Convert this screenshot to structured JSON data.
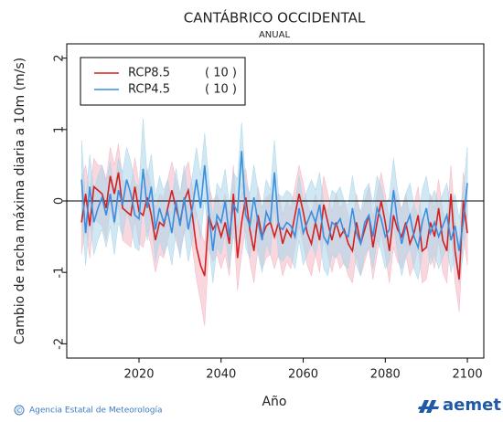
{
  "chart_data": {
    "type": "line",
    "title": "CANTÁBRICO OCCIDENTAL",
    "subtitle": "ANUAL",
    "y_label": "Cambio de racha máxima diaria a 10m (m/s)",
    "x_label": "Año",
    "footer_symbol": "©",
    "footer": "Agencia Estatal de Meteorología",
    "logo": "aemet",
    "xlim": [
      2002.4,
      2104
    ],
    "xticks": [
      2020,
      2040,
      2060,
      2080,
      2100
    ],
    "ylim": [
      -2.2,
      2.2
    ],
    "yticks": [
      2,
      1,
      0,
      -1,
      -2
    ],
    "hline": 0,
    "legend": "upper left",
    "x": [
      2006,
      2007,
      2008,
      2009,
      2010,
      2011,
      2012,
      2013,
      2014,
      2015,
      2016,
      2017,
      2018,
      2019,
      2020,
      2021,
      2022,
      2023,
      2024,
      2025,
      2026,
      2027,
      2028,
      2029,
      2030,
      2031,
      2032,
      2033,
      2034,
      2035,
      2036,
      2037,
      2038,
      2039,
      2040,
      2041,
      2042,
      2043,
      2044,
      2045,
      2046,
      2047,
      2048,
      2049,
      2050,
      2051,
      2052,
      2053,
      2054,
      2055,
      2056,
      2057,
      2058,
      2059,
      2060,
      2061,
      2062,
      2063,
      2064,
      2065,
      2066,
      2067,
      2068,
      2069,
      2070,
      2071,
      2072,
      2073,
      2074,
      2075,
      2076,
      2077,
      2078,
      2079,
      2080,
      2081,
      2082,
      2083,
      2084,
      2085,
      2086,
      2087,
      2088,
      2089,
      2090,
      2091,
      2092,
      2093,
      2094,
      2095,
      2096,
      2097,
      2098,
      2099,
      2100
    ],
    "series": [
      {
        "name": "RCP8.5",
        "legend_note": "( 10 )",
        "color": "#d42020",
        "band_color": "#f4b6c2",
        "values": [
          -0.3,
          0.1,
          -0.35,
          0.2,
          0.15,
          0.1,
          -0.1,
          0.35,
          0.1,
          0.4,
          -0.1,
          -0.15,
          -0.2,
          0.2,
          -0.15,
          -0.2,
          0.05,
          -0.2,
          -0.55,
          -0.3,
          -0.35,
          -0.1,
          0.15,
          -0.1,
          -0.3,
          0.0,
          0.15,
          -0.2,
          -0.65,
          -0.9,
          -1.05,
          -0.2,
          -0.4,
          -0.3,
          -0.5,
          -0.3,
          -0.6,
          0.1,
          -0.8,
          -0.3,
          0.05,
          -0.4,
          -0.7,
          -0.2,
          -0.5,
          -0.35,
          -0.3,
          -0.5,
          -0.3,
          -0.6,
          -0.4,
          -0.5,
          -0.2,
          0.1,
          -0.15,
          -0.45,
          -0.6,
          -0.3,
          -0.55,
          -0.05,
          -0.3,
          -0.55,
          -0.3,
          -0.5,
          -0.4,
          -0.6,
          -0.7,
          -0.3,
          -0.6,
          -0.4,
          -0.2,
          -0.65,
          -0.3,
          0.0,
          -0.3,
          -0.7,
          -0.2,
          -0.4,
          -0.5,
          -0.3,
          -0.6,
          -0.45,
          -0.2,
          -0.7,
          -0.65,
          -0.3,
          -0.5,
          -0.1,
          -0.55,
          -0.7,
          0.1,
          -0.7,
          -1.1,
          0.0,
          -0.45
        ],
        "upper": [
          0.3,
          0.5,
          0.1,
          0.6,
          0.5,
          0.5,
          0.3,
          0.75,
          0.5,
          0.8,
          0.3,
          0.25,
          0.2,
          0.6,
          0.25,
          0.2,
          0.45,
          0.2,
          -0.1,
          0.1,
          0.05,
          0.3,
          0.55,
          0.3,
          0.1,
          0.4,
          0.55,
          0.2,
          -0.2,
          -0.4,
          -0.6,
          0.2,
          0.0,
          0.1,
          -0.1,
          0.1,
          -0.2,
          0.5,
          -0.4,
          0.1,
          0.45,
          0.0,
          -0.3,
          0.2,
          -0.1,
          0.05,
          0.1,
          -0.1,
          0.1,
          -0.2,
          0.0,
          -0.1,
          0.2,
          0.5,
          0.25,
          -0.05,
          -0.2,
          0.1,
          -0.15,
          0.35,
          0.1,
          -0.15,
          0.1,
          -0.1,
          0.0,
          -0.2,
          -0.3,
          0.1,
          -0.2,
          0.0,
          0.2,
          -0.25,
          0.1,
          0.4,
          0.1,
          -0.3,
          0.2,
          0.0,
          -0.1,
          0.1,
          -0.2,
          -0.05,
          0.2,
          -0.3,
          -0.25,
          0.1,
          -0.1,
          0.3,
          -0.15,
          -0.3,
          0.5,
          -0.3,
          -0.6,
          0.4,
          -0.05
        ],
        "lower": [
          -0.75,
          -0.35,
          -0.8,
          -0.25,
          -0.3,
          -0.35,
          -0.55,
          -0.1,
          -0.35,
          -0.05,
          -0.55,
          -0.6,
          -0.65,
          -0.25,
          -0.6,
          -0.65,
          -0.4,
          -0.65,
          -1.0,
          -0.75,
          -0.8,
          -0.55,
          -0.3,
          -0.55,
          -0.75,
          -0.45,
          -0.3,
          -0.65,
          -1.1,
          -1.4,
          -1.75,
          -0.65,
          -0.85,
          -0.75,
          -0.95,
          -0.75,
          -1.05,
          -0.35,
          -1.25,
          -0.75,
          -0.4,
          -0.85,
          -1.15,
          -0.65,
          -0.95,
          -0.8,
          -0.75,
          -0.95,
          -0.75,
          -1.05,
          -0.85,
          -0.95,
          -0.65,
          -0.35,
          -0.6,
          -0.9,
          -1.05,
          -0.75,
          -1.0,
          -0.5,
          -0.75,
          -1.0,
          -0.75,
          -0.95,
          -0.85,
          -1.05,
          -1.15,
          -0.75,
          -1.05,
          -0.85,
          -0.65,
          -1.1,
          -0.75,
          -0.45,
          -0.75,
          -1.15,
          -0.65,
          -0.85,
          -0.95,
          -0.75,
          -1.05,
          -0.9,
          -0.65,
          -1.15,
          -1.1,
          -0.75,
          -0.95,
          -0.55,
          -1.0,
          -1.15,
          -0.35,
          -1.15,
          -1.55,
          -0.45,
          -0.9
        ]
      },
      {
        "name": "RCP4.5",
        "legend_note": "( 10 )",
        "color": "#3a8ee0",
        "band_color": "#a9d6ea",
        "values": [
          0.3,
          -0.45,
          0.2,
          -0.3,
          -0.1,
          0.05,
          -0.2,
          0.1,
          -0.3,
          0.15,
          -0.05,
          0.3,
          0.1,
          -0.2,
          -0.25,
          0.45,
          -0.1,
          0.2,
          -0.4,
          -0.1,
          -0.3,
          -0.15,
          -0.45,
          0.0,
          -0.35,
          0.05,
          -0.4,
          -0.1,
          0.3,
          -0.1,
          0.5,
          -0.15,
          -0.7,
          -0.2,
          -0.3,
          0.0,
          -0.5,
          -0.05,
          -0.15,
          0.7,
          -0.2,
          -0.35,
          0.05,
          -0.3,
          -0.55,
          -0.15,
          -0.3,
          0.4,
          -0.35,
          -0.4,
          -0.3,
          -0.35,
          -0.5,
          -0.1,
          -0.45,
          -0.3,
          -0.15,
          -0.3,
          -0.05,
          -0.5,
          -0.6,
          -0.3,
          -0.35,
          -0.25,
          -0.45,
          -0.5,
          -0.1,
          -0.45,
          -0.6,
          -0.3,
          -0.2,
          -0.5,
          -0.1,
          -0.25,
          -0.5,
          -0.4,
          0.15,
          -0.3,
          -0.6,
          -0.35,
          -0.2,
          -0.5,
          -0.65,
          -0.3,
          -0.1,
          -0.45,
          -0.3,
          -0.5,
          -0.35,
          -0.2,
          -0.55,
          -0.35,
          -0.7,
          -0.3,
          0.25
        ],
        "upper": [
          0.85,
          0.0,
          0.65,
          0.15,
          0.35,
          0.5,
          0.25,
          0.55,
          0.15,
          0.6,
          0.4,
          0.75,
          0.55,
          0.25,
          0.2,
          1.15,
          0.35,
          0.65,
          0.05,
          0.35,
          0.15,
          0.3,
          0.0,
          0.45,
          0.1,
          0.5,
          0.05,
          0.35,
          0.75,
          0.35,
          0.95,
          0.3,
          -0.25,
          0.25,
          0.15,
          0.45,
          -0.05,
          0.4,
          0.3,
          1.1,
          0.25,
          0.1,
          0.5,
          0.15,
          -0.1,
          0.3,
          0.15,
          0.85,
          0.1,
          0.05,
          0.15,
          0.1,
          -0.05,
          0.35,
          0.0,
          0.15,
          0.3,
          0.15,
          0.4,
          -0.05,
          -0.15,
          0.15,
          0.1,
          0.2,
          0.0,
          -0.05,
          0.35,
          0.0,
          -0.15,
          0.15,
          0.25,
          -0.05,
          0.35,
          0.2,
          -0.05,
          0.05,
          0.6,
          0.15,
          -0.15,
          0.1,
          0.25,
          -0.05,
          -0.2,
          0.15,
          0.35,
          0.0,
          0.15,
          -0.05,
          0.1,
          0.25,
          -0.1,
          0.1,
          -0.25,
          0.15,
          0.75
        ],
        "lower": [
          -0.15,
          -0.9,
          -0.25,
          -0.75,
          -0.55,
          -0.4,
          -0.65,
          -0.35,
          -0.75,
          -0.3,
          -0.5,
          -0.15,
          -0.35,
          -0.65,
          -0.7,
          0.0,
          -0.55,
          -0.25,
          -0.85,
          -0.55,
          -0.75,
          -0.6,
          -0.9,
          -0.45,
          -0.8,
          -0.4,
          -0.85,
          -0.55,
          -0.15,
          -0.55,
          0.05,
          -0.6,
          -1.15,
          -0.65,
          -0.75,
          -0.45,
          -0.95,
          -0.5,
          -0.6,
          0.25,
          -0.65,
          -0.8,
          -0.4,
          -0.75,
          -1.0,
          -0.6,
          -0.75,
          -0.05,
          -0.8,
          -0.85,
          -0.75,
          -0.8,
          -0.95,
          -0.55,
          -0.9,
          -0.75,
          -0.6,
          -0.75,
          -0.5,
          -0.95,
          -1.05,
          -0.75,
          -0.8,
          -0.7,
          -0.9,
          -0.95,
          -0.55,
          -0.9,
          -1.05,
          -0.75,
          -0.65,
          -0.95,
          -0.55,
          -0.7,
          -0.95,
          -0.85,
          -0.3,
          -0.75,
          -1.05,
          -0.8,
          -0.65,
          -0.95,
          -1.1,
          -0.75,
          -0.55,
          -0.9,
          -0.75,
          -0.95,
          -0.8,
          -0.65,
          -1.0,
          -0.8,
          -1.15,
          -0.75,
          -0.2
        ]
      }
    ]
  }
}
